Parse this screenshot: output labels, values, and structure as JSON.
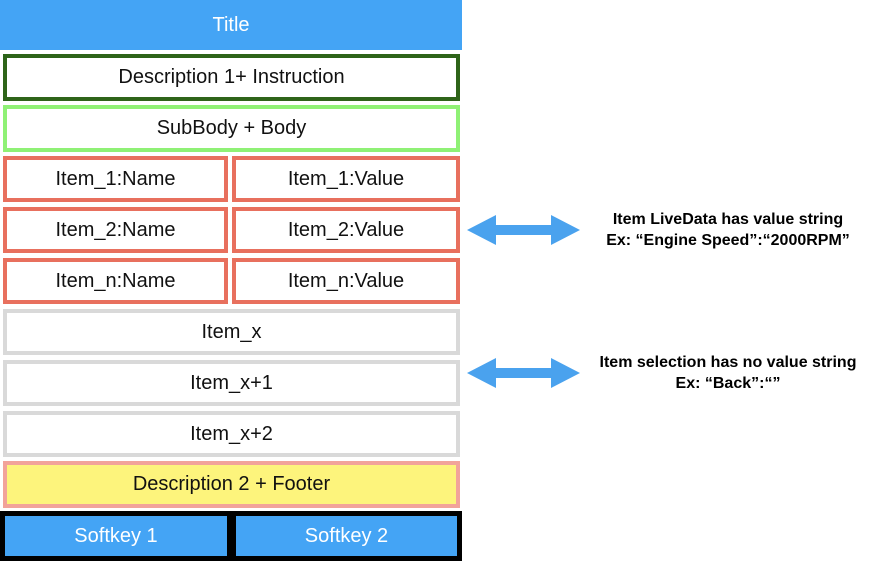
{
  "title": "Title",
  "description1": "Description 1+ Instruction",
  "subbody": "SubBody + Body",
  "livedata_items": [
    {
      "name": "Item_1:Name",
      "value": "Item_1:Value"
    },
    {
      "name": "Item_2:Name",
      "value": "Item_2:Value"
    },
    {
      "name": "Item_n:Name",
      "value": "Item_n:Value"
    }
  ],
  "selection_items": [
    "Item_x",
    "Item_x+1",
    "Item_x+2"
  ],
  "footer": "Description 2 + Footer",
  "softkeys": [
    "Softkey 1",
    "Softkey 2"
  ],
  "annotations": {
    "livedata": {
      "line1": "Item LiveData has value string",
      "line2": "Ex: “Engine Speed”:“2000RPM”"
    },
    "selection": {
      "line1": "Item selection has no value string",
      "line2": "Ex: “Back”:“”"
    }
  },
  "colors": {
    "title_bg": "#44a4f5",
    "desc1_border": "#2e6419",
    "subbody_border": "#8ff175",
    "livedata_border": "#e8705e",
    "selection_border": "#d9d9d9",
    "footer_bg": "#fdf47c",
    "footer_border": "#f2a39a",
    "softkey_bg": "#44a4f5",
    "arrow": "#4aa2ee"
  }
}
